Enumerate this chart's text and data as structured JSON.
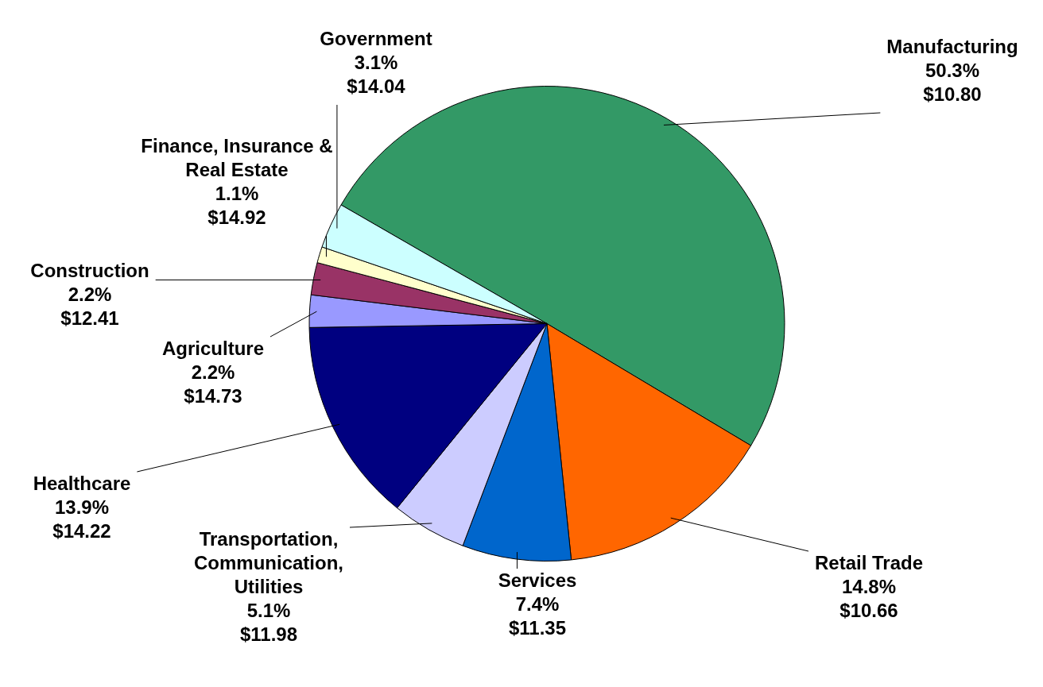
{
  "chart_data": {
    "type": "pie",
    "categories": [
      "Manufacturing",
      "Retail Trade",
      "Services",
      "Transportation, Communication, Utilities",
      "Healthcare",
      "Agriculture",
      "Construction",
      "Finance, Insurance & Real Estate",
      "Government"
    ],
    "values": [
      50.3,
      14.8,
      7.4,
      5.1,
      13.9,
      2.2,
      2.2,
      1.1,
      3.1
    ],
    "colors": [
      "#339966",
      "#ff6600",
      "#0066cc",
      "#ccccff",
      "#000080",
      "#9999ff",
      "#993366",
      "#ffffcc",
      "#ccffff"
    ],
    "value_labels": [
      "50.3%\n$10.80",
      "14.8%\n$10.66",
      "7.4%\n$11.35",
      "5.1%\n$11.98",
      "13.9%\n$14.22",
      "2.2%\n$14.73",
      "2.2%\n$12.41",
      "1.1%\n$14.92",
      "3.1%\n$14.04"
    ],
    "legend": false
  }
}
